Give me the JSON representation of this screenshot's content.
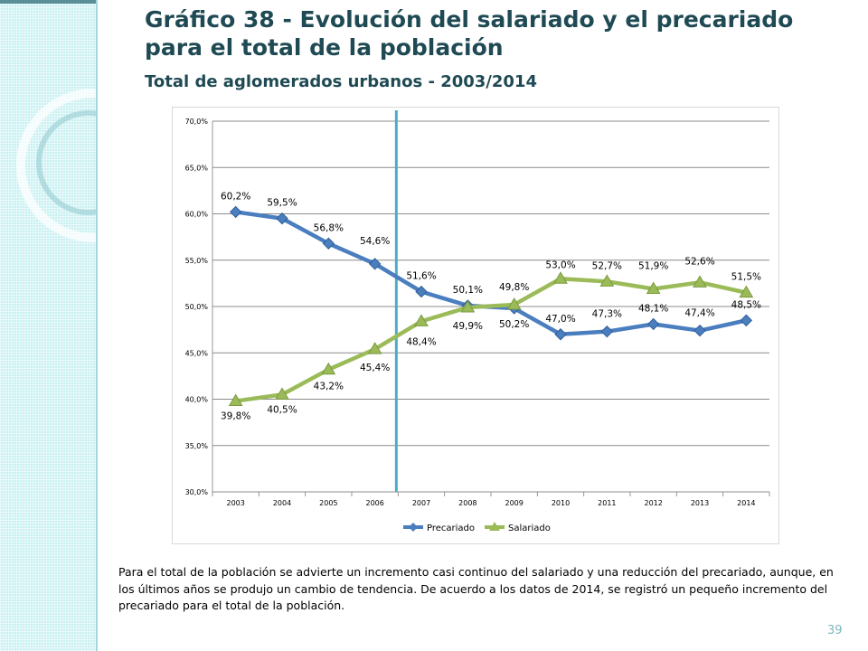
{
  "slide": {
    "title": "Gráfico 38 - Evolución del salariado y el precariado para el total de la población",
    "subtitle": "Total de aglomerados urbanos - 2003/2014",
    "description": "Para el total de la población se advierte un incremento casi continuo del salariado y una reducción del precariado, aunque, en los últimos años se produjo un cambio de tendencia. De acuerdo a los datos de 2014, se registró un pequeño incremento del precariado para el total de la población.",
    "page_number": "39"
  },
  "colors": {
    "precariado": "#4a7ebf",
    "salariado": "#9bbb59",
    "divider": "#4bacc6",
    "grid": "#8c8c8c"
  },
  "chart_data": {
    "type": "line",
    "title": "",
    "xlabel": "",
    "ylabel": "",
    "categories": [
      "2003",
      "2004",
      "2005",
      "2006",
      "2007",
      "2008",
      "2009",
      "2010",
      "2011",
      "2012",
      "2013",
      "2014"
    ],
    "ylim": [
      30,
      70
    ],
    "yticks": [
      30,
      35,
      40,
      45,
      50,
      55,
      60,
      65,
      70
    ],
    "ytick_labels": [
      "30,0%",
      "35,0%",
      "40,0%",
      "45,0%",
      "50,0%",
      "55,0%",
      "60,0%",
      "65,0%",
      "70,0%"
    ],
    "grid": true,
    "legend_position": "bottom",
    "vertical_marker_between": [
      "2006",
      "2007"
    ],
    "series": [
      {
        "name": "Precariado",
        "marker": "diamond",
        "values": [
          60.2,
          59.5,
          56.8,
          54.6,
          51.6,
          50.1,
          49.8,
          47.0,
          47.3,
          48.1,
          47.4,
          48.5
        ],
        "labels": [
          "60,2%",
          "59,5%",
          "56,8%",
          "54,6%",
          "51,6%",
          "50,1%",
          "49,8%",
          "47,0%",
          "47,3%",
          "48,1%",
          "47,4%",
          "48,5%"
        ]
      },
      {
        "name": "Salariado",
        "marker": "triangle",
        "values": [
          39.8,
          40.5,
          43.2,
          45.4,
          48.4,
          49.9,
          50.2,
          53.0,
          52.7,
          51.9,
          52.6,
          51.5
        ],
        "labels": [
          "39,8%",
          "40,5%",
          "43,2%",
          "45,4%",
          "48,4%",
          "49,9%",
          "50,2%",
          "53,0%",
          "52,7%",
          "51,9%",
          "52,6%",
          "51,5%"
        ]
      }
    ]
  }
}
